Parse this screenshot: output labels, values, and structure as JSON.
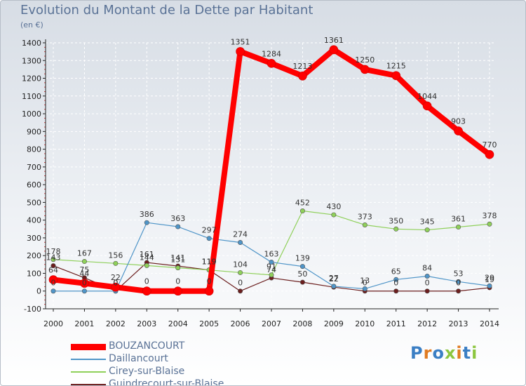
{
  "title": "Evolution du Montant de la Dette par Habitant",
  "unit": "(en €)",
  "logo": "Proxiti",
  "colors": {
    "background_top": "#d7dde5",
    "grid": "#ffffff",
    "axis": "#222222",
    "tick_text": "#222222",
    "title": "#5a7296"
  },
  "chart_data": {
    "type": "line",
    "title": "Evolution du Montant de la Dette par Habitant",
    "ylabel": "(en €)",
    "xlabel": "",
    "x": [
      "2000",
      "2001",
      "2002",
      "2003",
      "2004",
      "2005",
      "2006",
      "2007",
      "2008",
      "2009",
      "2010",
      "2011",
      "2012",
      "2013",
      "2014"
    ],
    "ylim": [
      -100,
      1400
    ],
    "yticks": [
      -100,
      0,
      100,
      200,
      300,
      400,
      500,
      600,
      700,
      800,
      900,
      1000,
      1100,
      1200,
      1300,
      1400
    ],
    "grid": true,
    "legend_position": "bottom-left",
    "series": [
      {
        "name": "BOUZANCOURT",
        "color": "#ff0000",
        "values": [
          64,
          44,
          22,
          0,
          0,
          0,
          1351,
          1284,
          1213,
          1361,
          1250,
          1215,
          1044,
          903,
          770
        ]
      },
      {
        "name": "Daillancourt",
        "color": "#4f95c8",
        "values": [
          0,
          0,
          0,
          386,
          363,
          297,
          274,
          163,
          139,
          27,
          13,
          65,
          84,
          53,
          29
        ]
      },
      {
        "name": "Cirey-sur-Blaise",
        "color": "#8fd05a",
        "values": [
          178,
          167,
          156,
          144,
          131,
          119,
          104,
          91,
          452,
          430,
          373,
          350,
          345,
          361,
          378
        ]
      },
      {
        "name": "Guindrecourt-sur-Blaise",
        "color": "#6b1e1e",
        "values": [
          143,
          75,
          0,
          161,
          141,
          119,
          0,
          74,
          50,
          22,
          0,
          0,
          0,
          0,
          19
        ]
      }
    ],
    "data_labels": [
      [
        "64",
        "44",
        "22",
        "0",
        "0",
        "0",
        "1351",
        "1284",
        "1213",
        "1361",
        "1250",
        "1215",
        "1044",
        "903",
        "770"
      ],
      [
        "0",
        "0",
        "0",
        "386",
        "363",
        "297",
        "274",
        "163",
        "139",
        "27",
        "13",
        "65",
        "84",
        "53",
        "29"
      ],
      [
        "178",
        "167",
        "156",
        "144",
        "131",
        "119",
        "104",
        "91",
        "452",
        "430",
        "373",
        "350",
        "345",
        "361",
        "378"
      ],
      [
        "143",
        "75",
        "0",
        "161",
        "141",
        "119",
        "0",
        "74",
        "50",
        "22",
        "0",
        "0",
        "0",
        "0",
        "19"
      ]
    ]
  }
}
